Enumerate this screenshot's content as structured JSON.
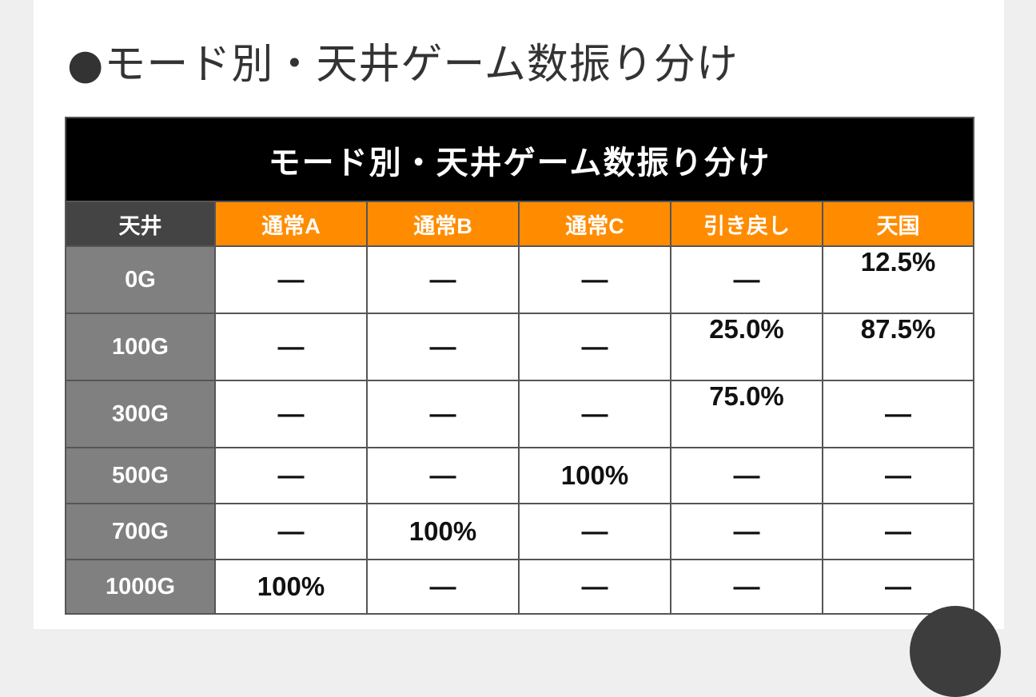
{
  "heading": "●モード別・天井ゲーム数振り分け",
  "table": {
    "title": "モード別・天井ゲーム数振り分け",
    "corner_label": "天井",
    "modes": [
      "通常A",
      "通常B",
      "通常C",
      "引き戻し",
      "天国"
    ],
    "rows": [
      {
        "label": "0G",
        "values": [
          "—",
          "—",
          "—",
          "—",
          "12.5%"
        ]
      },
      {
        "label": "100G",
        "values": [
          "—",
          "—",
          "—",
          "25.0%",
          "87.5%"
        ]
      },
      {
        "label": "300G",
        "values": [
          "—",
          "—",
          "—",
          "75.0%",
          "—"
        ]
      },
      {
        "label": "500G",
        "values": [
          "—",
          "—",
          "100%",
          "—",
          "—"
        ]
      },
      {
        "label": "700G",
        "values": [
          "—",
          "100%",
          "—",
          "—",
          "—"
        ]
      },
      {
        "label": "1000G",
        "values": [
          "100%",
          "—",
          "—",
          "—",
          "—"
        ]
      }
    ]
  },
  "colors": {
    "title_bg": "#000000",
    "mode_header_bg": "#ff8c00",
    "corner_bg": "#444444",
    "row_label_bg": "#808080"
  }
}
